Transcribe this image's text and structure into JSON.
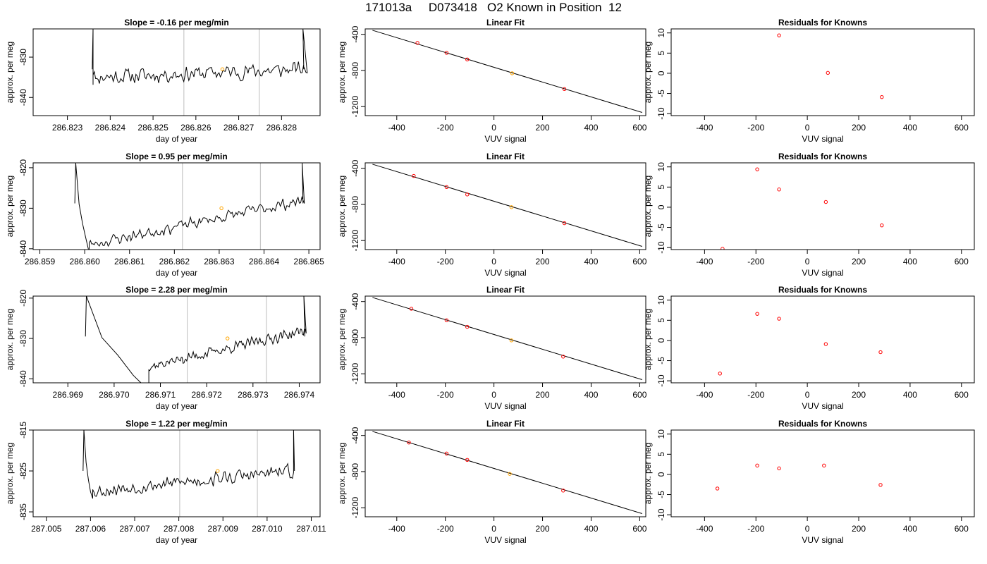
{
  "figure": {
    "title": "171013a     D073418   O2 Known in Position  12"
  },
  "chart_data": [
    {
      "type": "line",
      "row": 1,
      "title": "Slope =  -0.16  per meg/min",
      "xlabel": "day of year",
      "ylabel": "approx. per meg",
      "xlim": [
        286.8222,
        286.8289
      ],
      "ylim": [
        -844.5,
        -823
      ],
      "xticks": [
        "286.823",
        "286.824",
        "286.825",
        "286.826",
        "286.827",
        "286.828"
      ],
      "yticks": [
        -840,
        -830
      ],
      "xtick_values": [
        286.823,
        286.824,
        286.825,
        286.826,
        286.827,
        286.828
      ],
      "vlines": [
        286.82572,
        286.82748
      ],
      "highlight_point": {
        "x": 286.82662,
        "y": -833
      },
      "trace": {
        "x_start": 286.8236,
        "x_end": 286.8286,
        "level_start": -835,
        "level_end": -833,
        "noise": 2.4,
        "seed": 11,
        "pre_top": -823,
        "pre_bottom": -836,
        "post_top": -823,
        "spike_start": 286.8236,
        "spike_end": 286.8285
      },
      "line_color": "#000000",
      "vline_color": "#c8c8c8",
      "highlight_color": "#ffa500"
    },
    {
      "type": "scatter",
      "row": 1,
      "title": "Linear Fit",
      "xlabel": "VUV signal",
      "ylabel": "approx. per meg",
      "xlim": [
        -530,
        625
      ],
      "ylim": [
        -1300,
        -340
      ],
      "xticks": [
        -400,
        -200,
        0,
        200,
        400,
        600
      ],
      "yticks": [
        -400,
        -800,
        -1200
      ],
      "points": [
        {
          "x": -315,
          "y": -495
        },
        {
          "x": -195,
          "y": -605
        },
        {
          "x": -110,
          "y": -678
        },
        {
          "x": 75,
          "y": -831
        },
        {
          "x": 290,
          "y": -1006
        }
      ],
      "highlight_index": 3,
      "fit_line": {
        "x": [
          -500,
          610
        ],
        "y": [
          -355,
          -1265
        ]
      },
      "point_color": "#ff0000",
      "highlight_color": "#ffa500",
      "line_color": "#000000"
    },
    {
      "type": "scatter",
      "row": 1,
      "title": "Residuals for Knowns",
      "xlabel": "VUV signal",
      "ylabel": "approx. per meg",
      "xlim": [
        -530,
        650
      ],
      "ylim": [
        -10.5,
        11
      ],
      "xticks": [
        -400,
        -200,
        0,
        200,
        400,
        600
      ],
      "yticks": [
        10,
        5,
        0,
        -5,
        -10
      ],
      "points": [
        {
          "x": -110,
          "y": 9.4
        },
        {
          "x": 80,
          "y": 0.1
        },
        {
          "x": 290,
          "y": -5.9
        }
      ],
      "point_color": "#ff0000"
    },
    {
      "type": "line",
      "row": 2,
      "title": "Slope =  0.95  per meg/min",
      "xlabel": "day of year",
      "ylabel": "approx. per meg",
      "xlim": [
        286.85885,
        286.86525
      ],
      "ylim": [
        -840.2,
        -818.8
      ],
      "xticks": [
        "286.859",
        "286.860",
        "286.861",
        "286.862",
        "286.863",
        "286.864",
        "286.865"
      ],
      "yticks": [
        -840,
        -830,
        -820
      ],
      "xtick_values": [
        286.859,
        286.86,
        286.861,
        286.862,
        286.863,
        286.864,
        286.865
      ],
      "vlines": [
        286.86218,
        286.86392
      ],
      "highlight_point": {
        "x": 286.86305,
        "y": -830
      },
      "trace": {
        "x_start": 286.8601,
        "x_end": 286.8649,
        "level_start": -839,
        "level_end": -828,
        "noise": 1.8,
        "seed": 23,
        "pre_top": -818.8,
        "pre_bottom": -841,
        "post_top": -818.8,
        "spike_start": 286.8598,
        "spike_end": 286.86485
      },
      "line_color": "#000000",
      "vline_color": "#c8c8c8",
      "highlight_color": "#ffa500"
    },
    {
      "type": "scatter",
      "row": 2,
      "title": "Linear Fit",
      "xlabel": "VUV signal",
      "ylabel": "approx. per meg",
      "xlim": [
        -530,
        625
      ],
      "ylim": [
        -1300,
        -340
      ],
      "xticks": [
        -400,
        -200,
        0,
        200,
        400,
        600
      ],
      "yticks": [
        -400,
        -800,
        -1200
      ],
      "points": [
        {
          "x": -330,
          "y": -485
        },
        {
          "x": -195,
          "y": -608
        },
        {
          "x": -110,
          "y": -690
        },
        {
          "x": 72,
          "y": -830
        },
        {
          "x": 290,
          "y": -1008
        }
      ],
      "highlight_index": 3,
      "fit_line": {
        "x": [
          -500,
          610
        ],
        "y": [
          -355,
          -1265
        ]
      },
      "point_color": "#ff0000",
      "highlight_color": "#ffa500",
      "line_color": "#000000"
    },
    {
      "type": "scatter",
      "row": 2,
      "title": "Residuals for Knowns",
      "xlabel": "VUV signal",
      "ylabel": "approx. per meg",
      "xlim": [
        -530,
        650
      ],
      "ylim": [
        -10.5,
        11
      ],
      "xticks": [
        -400,
        -200,
        0,
        200,
        400,
        600
      ],
      "yticks": [
        10,
        5,
        0,
        -5,
        -10
      ],
      "points": [
        {
          "x": -330,
          "y": -10.3
        },
        {
          "x": -195,
          "y": 9.4
        },
        {
          "x": -110,
          "y": 4.4
        },
        {
          "x": 72,
          "y": 1.3
        },
        {
          "x": 290,
          "y": -4.5
        }
      ],
      "point_color": "#ff0000"
    },
    {
      "type": "line",
      "row": 3,
      "title": "Slope =  2.28  per meg/min",
      "xlabel": "day of year",
      "ylabel": "approx. per meg",
      "xlim": [
        286.96825,
        286.97445
      ],
      "ylim": [
        -841,
        -819.5
      ],
      "xticks": [
        "286.969",
        "286.970",
        "286.971",
        "286.972",
        "286.973",
        "286.974"
      ],
      "yticks": [
        -840,
        -830,
        -820
      ],
      "xtick_values": [
        286.969,
        286.97,
        286.971,
        286.972,
        286.973,
        286.974
      ],
      "vlines": [
        286.97158,
        286.97329
      ],
      "highlight_point": {
        "x": 286.97245,
        "y": -830
      },
      "trace": {
        "x_start": 286.97075,
        "x_end": 286.97415,
        "level_start": -837,
        "level_end": -828,
        "noise": 1.6,
        "seed": 37,
        "pre_top": -819.5,
        "pre_bottom": -842,
        "post_top": -819.5,
        "spike_start": 286.9694,
        "spike_end": 286.9741
      },
      "line_color": "#000000",
      "vline_color": "#c8c8c8",
      "highlight_color": "#ffa500"
    },
    {
      "type": "scatter",
      "row": 3,
      "title": "Linear Fit",
      "xlabel": "VUV signal",
      "ylabel": "approx. per meg",
      "xlim": [
        -530,
        625
      ],
      "ylim": [
        -1300,
        -340
      ],
      "xticks": [
        -400,
        -200,
        0,
        200,
        400,
        600
      ],
      "yticks": [
        -400,
        -800,
        -1200
      ],
      "points": [
        {
          "x": -340,
          "y": -480
        },
        {
          "x": -195,
          "y": -608
        },
        {
          "x": -110,
          "y": -680
        },
        {
          "x": 72,
          "y": -830
        },
        {
          "x": 285,
          "y": -1010
        }
      ],
      "highlight_index": 3,
      "fit_line": {
        "x": [
          -500,
          610
        ],
        "y": [
          -355,
          -1265
        ]
      },
      "point_color": "#ff0000",
      "highlight_color": "#ffa500",
      "line_color": "#000000"
    },
    {
      "type": "scatter",
      "row": 3,
      "title": "Residuals for Knowns",
      "xlabel": "VUV signal",
      "ylabel": "approx. per meg",
      "xlim": [
        -530,
        650
      ],
      "ylim": [
        -10.5,
        11
      ],
      "xticks": [
        -400,
        -200,
        0,
        200,
        400,
        600
      ],
      "yticks": [
        10,
        5,
        0,
        -5,
        -10
      ],
      "points": [
        {
          "x": -340,
          "y": -8.2
        },
        {
          "x": -195,
          "y": 6.6
        },
        {
          "x": -110,
          "y": 5.4
        },
        {
          "x": 72,
          "y": -0.9
        },
        {
          "x": 285,
          "y": -2.9
        }
      ],
      "point_color": "#ff0000"
    },
    {
      "type": "line",
      "row": 4,
      "title": "Slope =  1.22  per meg/min",
      "xlabel": "day of year",
      "ylabel": "approx. per meg",
      "xlim": [
        287.0047,
        287.0112
      ],
      "ylim": [
        -836.2,
        -815
      ],
      "xticks": [
        "287.005",
        "287.006",
        "287.007",
        "287.008",
        "287.009",
        "287.010",
        "287.011"
      ],
      "yticks": [
        -835,
        -825,
        -815
      ],
      "xtick_values": [
        287.005,
        287.006,
        287.007,
        287.008,
        287.009,
        287.01,
        287.011
      ],
      "vlines": [
        287.00802,
        287.00978
      ],
      "highlight_point": {
        "x": 287.00888,
        "y": -825
      },
      "trace": {
        "x_start": 287.00605,
        "x_end": 287.0106,
        "level_start": -830,
        "level_end": -825,
        "noise": 2.1,
        "seed": 53,
        "pre_top": -815,
        "pre_bottom": -832,
        "post_top": -815,
        "spike_start": 287.00585,
        "spike_end": 287.0106
      },
      "line_color": "#000000",
      "vline_color": "#c8c8c8",
      "highlight_color": "#ffa500"
    },
    {
      "type": "scatter",
      "row": 4,
      "title": "Linear Fit",
      "xlabel": "VUV signal",
      "ylabel": "approx. per meg",
      "xlim": [
        -530,
        625
      ],
      "ylim": [
        -1300,
        -340
      ],
      "xticks": [
        -400,
        -200,
        0,
        200,
        400,
        600
      ],
      "yticks": [
        -400,
        -800,
        -1200
      ],
      "points": [
        {
          "x": -350,
          "y": -478
        },
        {
          "x": -195,
          "y": -600
        },
        {
          "x": -110,
          "y": -670
        },
        {
          "x": 65,
          "y": -825
        },
        {
          "x": 285,
          "y": -1010
        }
      ],
      "highlight_index": 3,
      "fit_line": {
        "x": [
          -500,
          610
        ],
        "y": [
          -355,
          -1265
        ]
      },
      "point_color": "#ff0000",
      "highlight_color": "#ffa500",
      "line_color": "#000000"
    },
    {
      "type": "scatter",
      "row": 4,
      "title": "Residuals for Knowns",
      "xlabel": "VUV signal",
      "ylabel": "approx. per meg",
      "xlim": [
        -530,
        650
      ],
      "ylim": [
        -10.5,
        11
      ],
      "xticks": [
        -400,
        -200,
        0,
        200,
        400,
        600
      ],
      "yticks": [
        10,
        5,
        0,
        -5,
        -10
      ],
      "points": [
        {
          "x": -350,
          "y": -3.5
        },
        {
          "x": -195,
          "y": 2.2
        },
        {
          "x": -110,
          "y": 1.5
        },
        {
          "x": 65,
          "y": 2.2
        },
        {
          "x": 285,
          "y": -2.6
        }
      ],
      "point_color": "#ff0000"
    }
  ]
}
